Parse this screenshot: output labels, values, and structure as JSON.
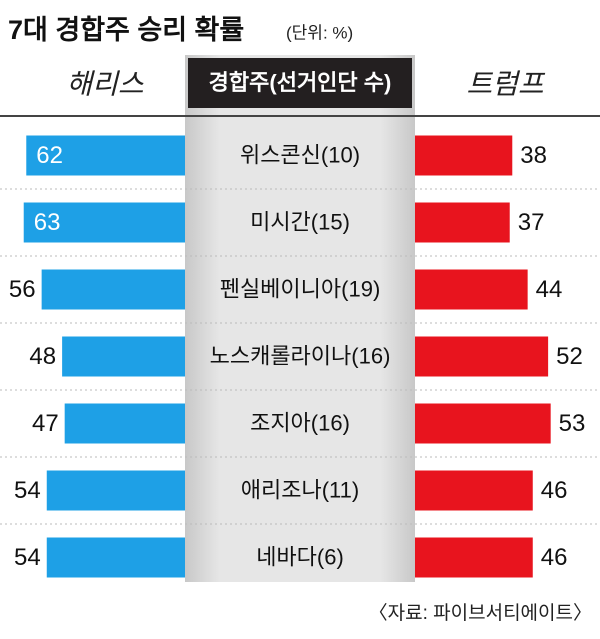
{
  "chart_data": {
    "type": "butterfly",
    "title": "7대 경합주 승리 확률",
    "subtitle": "(단위: %)",
    "category_label": "경합주(선거인단 수)",
    "source": "〈자료: 파이브서티에이트〉",
    "categories": [
      "위스콘신(10)",
      "미시간(15)",
      "펜실베이니아(19)",
      "노스캐롤라이나(16)",
      "조지아(16)",
      "애리조나(11)",
      "네바다(6)"
    ],
    "series": [
      {
        "name": "해리스",
        "color": "#1ea0e6",
        "values": [
          62,
          63,
          56,
          48,
          47,
          54,
          54
        ]
      },
      {
        "name": "트럼프",
        "color": "#e8141e",
        "values": [
          38,
          37,
          44,
          52,
          53,
          46,
          46
        ]
      }
    ]
  }
}
